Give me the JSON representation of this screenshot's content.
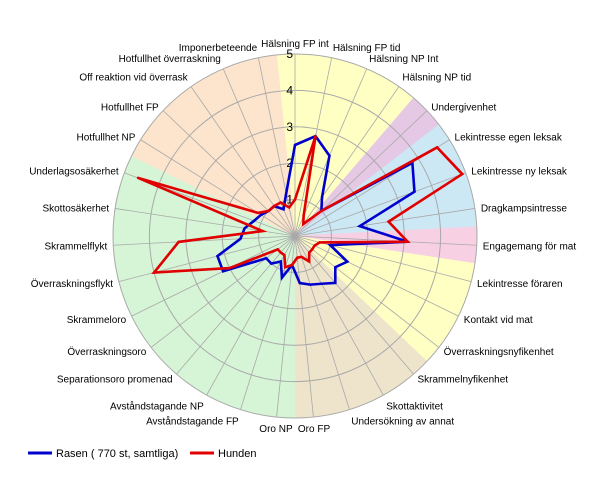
{
  "chart_data": {
    "type": "radar",
    "categories": [
      "Hälsning FP int",
      "Hälsning FP tid",
      "Hälsning NP Int",
      "Hälsning NP tid",
      "Undergivenhet",
      "Lekintresse egen leksak",
      "Lekintresse ny leksak",
      "Dragkampsintresse",
      "Engagemang för mat",
      "Lekintresse föraren",
      "Kontakt vid mat",
      "Överraskningsnyfikenhet",
      "Skrammelnyfikenhet",
      "Skottaktivitet",
      "Undersökning av annat",
      "Oro FP",
      "Oro NP",
      "Avståndstagande FP",
      "Avståndstagande NP",
      "Separationsoro promenad",
      "Överraskningsoro",
      "Skrammeloro",
      "Överraskningsflykt",
      "Skrammelflykt",
      "Skottosäkerhet",
      "Underlagsosäkerhet",
      "Hotfullhet NP",
      "Hotfullhet FP",
      "Off reaktion vid överrask",
      "Hotfullhet överraskning",
      "Imponerbeteende"
    ],
    "rlim": [
      0,
      5
    ],
    "tick_labels": [
      "1",
      "2",
      "3",
      "4",
      "5"
    ],
    "series": [
      {
        "name": "Rasen ( 770 st, samtliga)",
        "color": "#0000cc",
        "values": [
          2.5,
          2.8,
          2.4,
          1.3,
          1.0,
          3.8,
          3.5,
          1.8,
          3.1,
          1.0,
          1.6,
          1.4,
          1.7,
          1.5,
          1.4,
          1.3,
          0.8,
          1.2,
          0.8,
          1.0,
          1.0,
          2.2,
          2.2,
          1.5,
          1.4,
          1.2,
          1.1,
          1.0,
          1.0,
          0.8,
          1.2
        ]
      },
      {
        "name": "Hunden",
        "color": "#e00000",
        "values": [
          1.0,
          2.8,
          0.6,
          0.4,
          1.0,
          4.6,
          4.9,
          2.6,
          3.1,
          0.7,
          0.6,
          0.6,
          0.6,
          0.8,
          0.6,
          0.6,
          0.8,
          0.9,
          0.6,
          0.6,
          0.6,
          2.0,
          4.0,
          3.2,
          0.9,
          4.6,
          1.2,
          1.0,
          1.0,
          1.0,
          0.8
        ]
      }
    ],
    "sector_colors": [
      "#ffffc4",
      "#ffffc4",
      "#ffffc4",
      "#ffffc4",
      "#e4c8e4",
      "#cde8f5",
      "#cde8f5",
      "#cde8f5",
      "#f8d0e4",
      "#ffffc4",
      "#ffffc4",
      "#ffffc4",
      "#eee4cc",
      "#eee4cc",
      "#eee4cc",
      "#eee4cc",
      "#d6f4d6",
      "#d6f4d6",
      "#d6f4d6",
      "#d6f4d6",
      "#d6f4d6",
      "#d6f4d6",
      "#d6f4d6",
      "#d6f4d6",
      "#d6f4d6",
      "#d6f4d6",
      "#fde4cc",
      "#fde4cc",
      "#fde4cc",
      "#fde4cc",
      "#fde4cc"
    ],
    "grid": true,
    "legend_position": "bottom-left"
  }
}
